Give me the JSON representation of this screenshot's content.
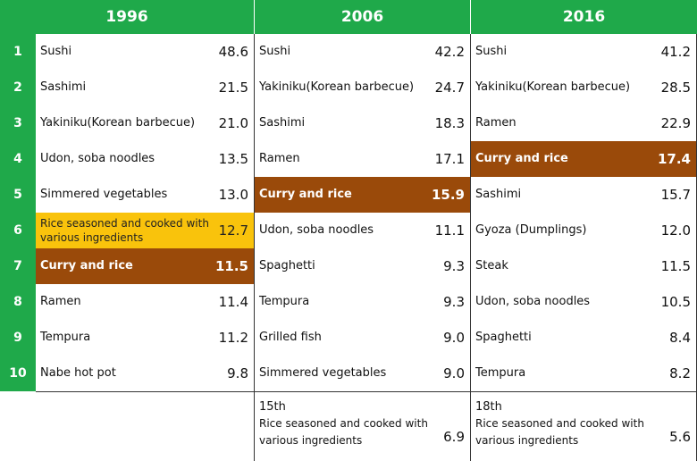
{
  "colors": {
    "header_green": "#1fa94a",
    "curry_brown": "#9a4a0a",
    "rice_yellow": "#f9c30c"
  },
  "chart_data": {
    "type": "table",
    "ranks": [
      "1",
      "2",
      "3",
      "4",
      "5",
      "6",
      "7",
      "8",
      "9",
      "10"
    ],
    "columns": [
      {
        "year": "1996",
        "items": [
          {
            "name": "Sushi",
            "value": "48.6"
          },
          {
            "name": "Sashimi",
            "value": "21.5"
          },
          {
            "name": "Yakiniku(Korean barbecue)",
            "value": "21.0"
          },
          {
            "name": "Udon, soba noodles",
            "value": "13.5"
          },
          {
            "name": "Simmered vegetables",
            "value": "13.0"
          },
          {
            "name": "Rice seasoned and cooked with various ingredients",
            "value": "12.7"
          },
          {
            "name": "Curry and rice",
            "value": "11.5"
          },
          {
            "name": "Ramen",
            "value": "11.4"
          },
          {
            "name": "Tempura",
            "value": "11.2"
          },
          {
            "name": "Nabe hot pot",
            "value": "9.8"
          }
        ]
      },
      {
        "year": "2006",
        "items": [
          {
            "name": "Sushi",
            "value": "42.2"
          },
          {
            "name": "Yakiniku(Korean barbecue)",
            "value": "24.7"
          },
          {
            "name": "Sashimi",
            "value": "18.3"
          },
          {
            "name": "Ramen",
            "value": "17.1"
          },
          {
            "name": "Curry and rice",
            "value": "15.9"
          },
          {
            "name": "Udon, soba noodles",
            "value": "11.1"
          },
          {
            "name": "Spaghetti",
            "value": "9.3"
          },
          {
            "name": "Tempura",
            "value": "9.3"
          },
          {
            "name": "Grilled fish",
            "value": "9.0"
          },
          {
            "name": "Simmered vegetables",
            "value": "9.0"
          }
        ],
        "footnote": {
          "rank": "15th",
          "name": "Rice seasoned and cooked with various ingredients",
          "value": "6.9"
        }
      },
      {
        "year": "2016",
        "items": [
          {
            "name": "Sushi",
            "value": "41.2"
          },
          {
            "name": "Yakiniku(Korean barbecue)",
            "value": "28.5"
          },
          {
            "name": "Ramen",
            "value": "22.9"
          },
          {
            "name": "Curry and rice",
            "value": "17.4"
          },
          {
            "name": "Sashimi",
            "value": "15.7"
          },
          {
            "name": "Gyoza (Dumplings)",
            "value": "12.0"
          },
          {
            "name": "Steak",
            "value": "11.5"
          },
          {
            "name": "Udon, soba noodles",
            "value": "10.5"
          },
          {
            "name": "Spaghetti",
            "value": "8.4"
          },
          {
            "name": "Tempura",
            "value": "8.2"
          }
        ],
        "footnote": {
          "rank": "18th",
          "name": "Rice seasoned and cooked with various ingredients",
          "value": "5.6"
        }
      }
    ]
  }
}
